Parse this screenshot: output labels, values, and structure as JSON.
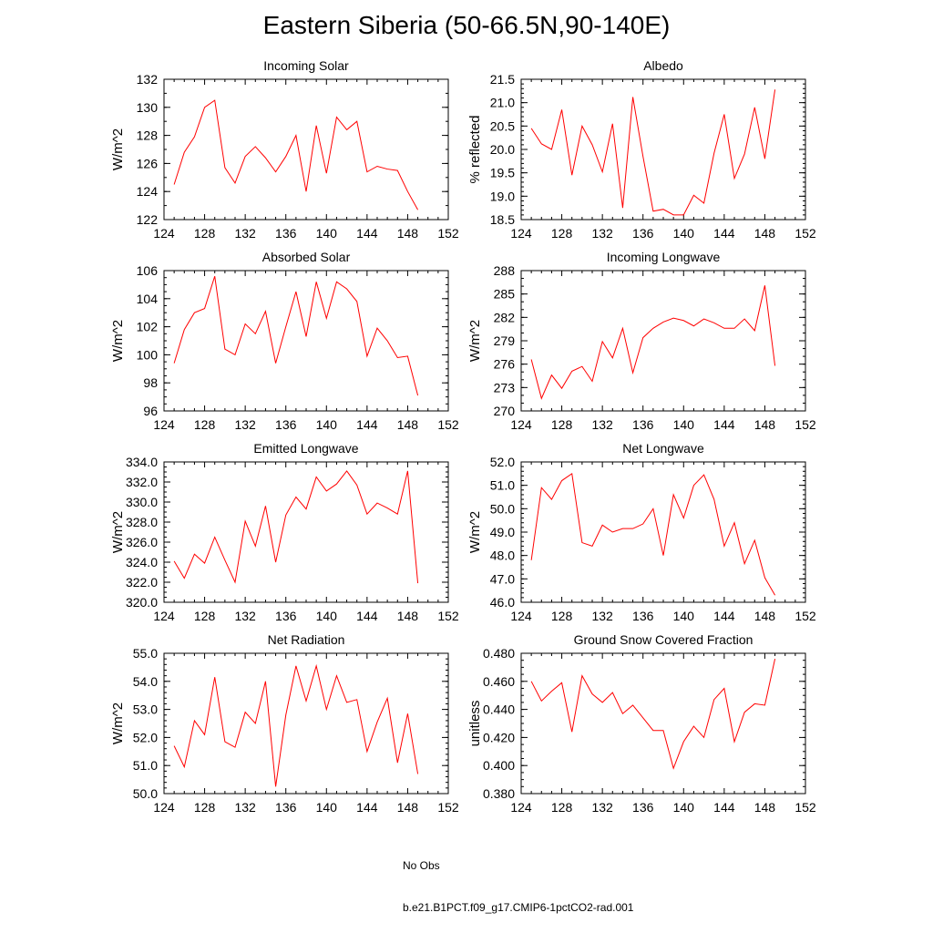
{
  "title": "Eastern Siberia (50-66.5N,90-140E)",
  "legend": {
    "obs_label": "No Obs",
    "model_label": "b.e21.B1PCT.f09_g17.CMIP6-1pctCO2-rad.001",
    "obs_color": "#4a4aa0",
    "model_color": "#ff0000"
  },
  "chart_data": [
    {
      "type": "line",
      "title": "Incoming Solar",
      "ylabel": "W/m^2",
      "xlim": [
        124,
        152
      ],
      "ylim": [
        122,
        132
      ],
      "xticks": [
        124,
        128,
        132,
        136,
        140,
        144,
        148,
        152
      ],
      "yticks": [
        "122",
        "124",
        "126",
        "128",
        "130",
        "132"
      ],
      "yminor": 1,
      "x": [
        125,
        126,
        127,
        128,
        129,
        130,
        131,
        132,
        133,
        134,
        135,
        136,
        137,
        138,
        139,
        140,
        141,
        142,
        143,
        144,
        145,
        146,
        147,
        148,
        149
      ],
      "series": [
        {
          "values": [
            124.5,
            126.8,
            127.9,
            130.0,
            130.5,
            125.7,
            124.6,
            126.5,
            127.2,
            126.4,
            125.4,
            126.5,
            128.0,
            124.0,
            128.7,
            125.3,
            129.3,
            128.4,
            129.0,
            125.4,
            125.8,
            125.6,
            125.5,
            124.0,
            122.7
          ]
        }
      ]
    },
    {
      "type": "line",
      "title": "Albedo",
      "ylabel": "% reflected",
      "xlim": [
        124,
        152
      ],
      "ylim": [
        18.5,
        21.5
      ],
      "xticks": [
        124,
        128,
        132,
        136,
        140,
        144,
        148,
        152
      ],
      "yticks": [
        "18.5",
        "19.0",
        "19.5",
        "20.0",
        "20.5",
        "21.0",
        "21.5"
      ],
      "yminor": 0.1,
      "x": [
        125,
        126,
        127,
        128,
        129,
        130,
        131,
        132,
        133,
        134,
        135,
        136,
        137,
        138,
        139,
        140,
        141,
        142,
        143,
        144,
        145,
        146,
        147,
        148,
        149
      ],
      "series": [
        {
          "values": [
            20.45,
            20.12,
            20.0,
            20.85,
            19.45,
            20.5,
            20.1,
            19.52,
            20.55,
            18.75,
            21.12,
            19.85,
            18.68,
            18.72,
            18.6,
            18.6,
            19.02,
            18.85,
            19.92,
            20.75,
            19.38,
            19.9,
            20.9,
            19.8,
            21.28
          ]
        }
      ]
    },
    {
      "type": "line",
      "title": "Absorbed Solar",
      "ylabel": "W/m^2",
      "xlim": [
        124,
        152
      ],
      "ylim": [
        96,
        106
      ],
      "xticks": [
        124,
        128,
        132,
        136,
        140,
        144,
        148,
        152
      ],
      "yticks": [
        "96",
        "98",
        "100",
        "102",
        "104",
        "106"
      ],
      "yminor": 0.5,
      "x": [
        125,
        126,
        127,
        128,
        129,
        130,
        131,
        132,
        133,
        134,
        135,
        136,
        137,
        138,
        139,
        140,
        141,
        142,
        143,
        144,
        145,
        146,
        147,
        148,
        149
      ],
      "series": [
        {
          "values": [
            99.4,
            101.8,
            103.0,
            103.3,
            105.6,
            100.4,
            100.0,
            102.2,
            101.5,
            103.1,
            99.4,
            102.0,
            104.5,
            101.3,
            105.2,
            102.6,
            105.2,
            104.7,
            103.8,
            99.9,
            101.9,
            101.0,
            99.8,
            99.9,
            97.1
          ]
        }
      ]
    },
    {
      "type": "line",
      "title": "Incoming Longwave",
      "ylabel": "W/m^2",
      "xlim": [
        124,
        152
      ],
      "ylim": [
        270,
        288
      ],
      "xticks": [
        124,
        128,
        132,
        136,
        140,
        144,
        148,
        152
      ],
      "yticks": [
        "270",
        "273",
        "276",
        "279",
        "282",
        "285",
        "288"
      ],
      "yminor": 1,
      "x": [
        125,
        126,
        127,
        128,
        129,
        130,
        131,
        132,
        133,
        134,
        135,
        136,
        137,
        138,
        139,
        140,
        141,
        142,
        143,
        144,
        145,
        146,
        147,
        148,
        149
      ],
      "series": [
        {
          "values": [
            276.6,
            271.6,
            274.6,
            272.9,
            275.1,
            275.7,
            273.8,
            278.9,
            276.8,
            280.6,
            274.9,
            279.4,
            280.6,
            281.4,
            281.9,
            281.6,
            280.9,
            281.8,
            281.3,
            280.6,
            280.6,
            281.8,
            280.3,
            286.1,
            275.8
          ]
        }
      ]
    },
    {
      "type": "line",
      "title": "Emitted Longwave",
      "ylabel": "W/m^2",
      "xlim": [
        124,
        152
      ],
      "ylim": [
        320,
        334
      ],
      "xticks": [
        124,
        128,
        132,
        136,
        140,
        144,
        148,
        152
      ],
      "yticks": [
        "320.0",
        "322.0",
        "324.0",
        "326.0",
        "328.0",
        "330.0",
        "332.0",
        "334.0"
      ],
      "yminor": 0.5,
      "x": [
        125,
        126,
        127,
        128,
        129,
        130,
        131,
        132,
        133,
        134,
        135,
        136,
        137,
        138,
        139,
        140,
        141,
        142,
        143,
        144,
        145,
        146,
        147,
        148,
        149
      ],
      "series": [
        {
          "values": [
            324.1,
            322.4,
            324.8,
            323.9,
            326.5,
            324.2,
            322.0,
            328.1,
            325.6,
            329.6,
            324.0,
            328.7,
            330.5,
            329.3,
            332.5,
            331.1,
            331.8,
            333.1,
            331.7,
            328.8,
            329.9,
            329.4,
            328.8,
            333.1,
            321.9
          ]
        }
      ]
    },
    {
      "type": "line",
      "title": "Net Longwave",
      "ylabel": "W/m^2",
      "xlim": [
        124,
        152
      ],
      "ylim": [
        46,
        52
      ],
      "xticks": [
        124,
        128,
        132,
        136,
        140,
        144,
        148,
        152
      ],
      "yticks": [
        "46.0",
        "47.0",
        "48.0",
        "49.0",
        "50.0",
        "51.0",
        "52.0"
      ],
      "yminor": 0.2,
      "x": [
        125,
        126,
        127,
        128,
        129,
        130,
        131,
        132,
        133,
        134,
        135,
        136,
        137,
        138,
        139,
        140,
        141,
        142,
        143,
        144,
        145,
        146,
        147,
        148,
        149
      ],
      "series": [
        {
          "values": [
            47.8,
            50.9,
            50.4,
            51.2,
            51.5,
            48.55,
            48.4,
            49.3,
            49.0,
            49.15,
            49.15,
            49.35,
            50.0,
            48.0,
            50.6,
            49.6,
            51.0,
            51.45,
            50.4,
            48.4,
            49.4,
            47.65,
            48.65,
            47.05,
            46.3
          ]
        }
      ]
    },
    {
      "type": "line",
      "title": "Net Radiation",
      "ylabel": "W/m^2",
      "xlim": [
        124,
        152
      ],
      "ylim": [
        50,
        55
      ],
      "xticks": [
        124,
        128,
        132,
        136,
        140,
        144,
        148,
        152
      ],
      "yticks": [
        "50.0",
        "51.0",
        "52.0",
        "53.0",
        "54.0",
        "55.0"
      ],
      "yminor": 0.2,
      "x": [
        125,
        126,
        127,
        128,
        129,
        130,
        131,
        132,
        133,
        134,
        135,
        136,
        137,
        138,
        139,
        140,
        141,
        142,
        143,
        144,
        145,
        146,
        147,
        148,
        149
      ],
      "series": [
        {
          "values": [
            51.7,
            50.95,
            52.6,
            52.1,
            54.15,
            51.85,
            51.65,
            52.9,
            52.5,
            54.0,
            50.25,
            52.8,
            54.55,
            53.3,
            54.55,
            53.0,
            54.2,
            53.25,
            53.35,
            51.5,
            52.55,
            53.4,
            51.1,
            52.85,
            50.7
          ]
        }
      ]
    },
    {
      "type": "line",
      "title": "Ground Snow Covered Fraction",
      "ylabel": "unitless",
      "xlim": [
        124,
        152
      ],
      "ylim": [
        0.38,
        0.48
      ],
      "xticks": [
        124,
        128,
        132,
        136,
        140,
        144,
        148,
        152
      ],
      "yticks": [
        "0.380",
        "0.400",
        "0.420",
        "0.440",
        "0.460",
        "0.480"
      ],
      "yminor": 0.005,
      "x": [
        125,
        126,
        127,
        128,
        129,
        130,
        131,
        132,
        133,
        134,
        135,
        136,
        137,
        138,
        139,
        140,
        141,
        142,
        143,
        144,
        145,
        146,
        147,
        148,
        149
      ],
      "series": [
        {
          "values": [
            0.46,
            0.446,
            0.453,
            0.459,
            0.424,
            0.464,
            0.451,
            0.445,
            0.452,
            0.437,
            0.443,
            0.434,
            0.425,
            0.425,
            0.398,
            0.417,
            0.428,
            0.42,
            0.447,
            0.455,
            0.417,
            0.438,
            0.444,
            0.443,
            0.476
          ]
        }
      ]
    }
  ]
}
